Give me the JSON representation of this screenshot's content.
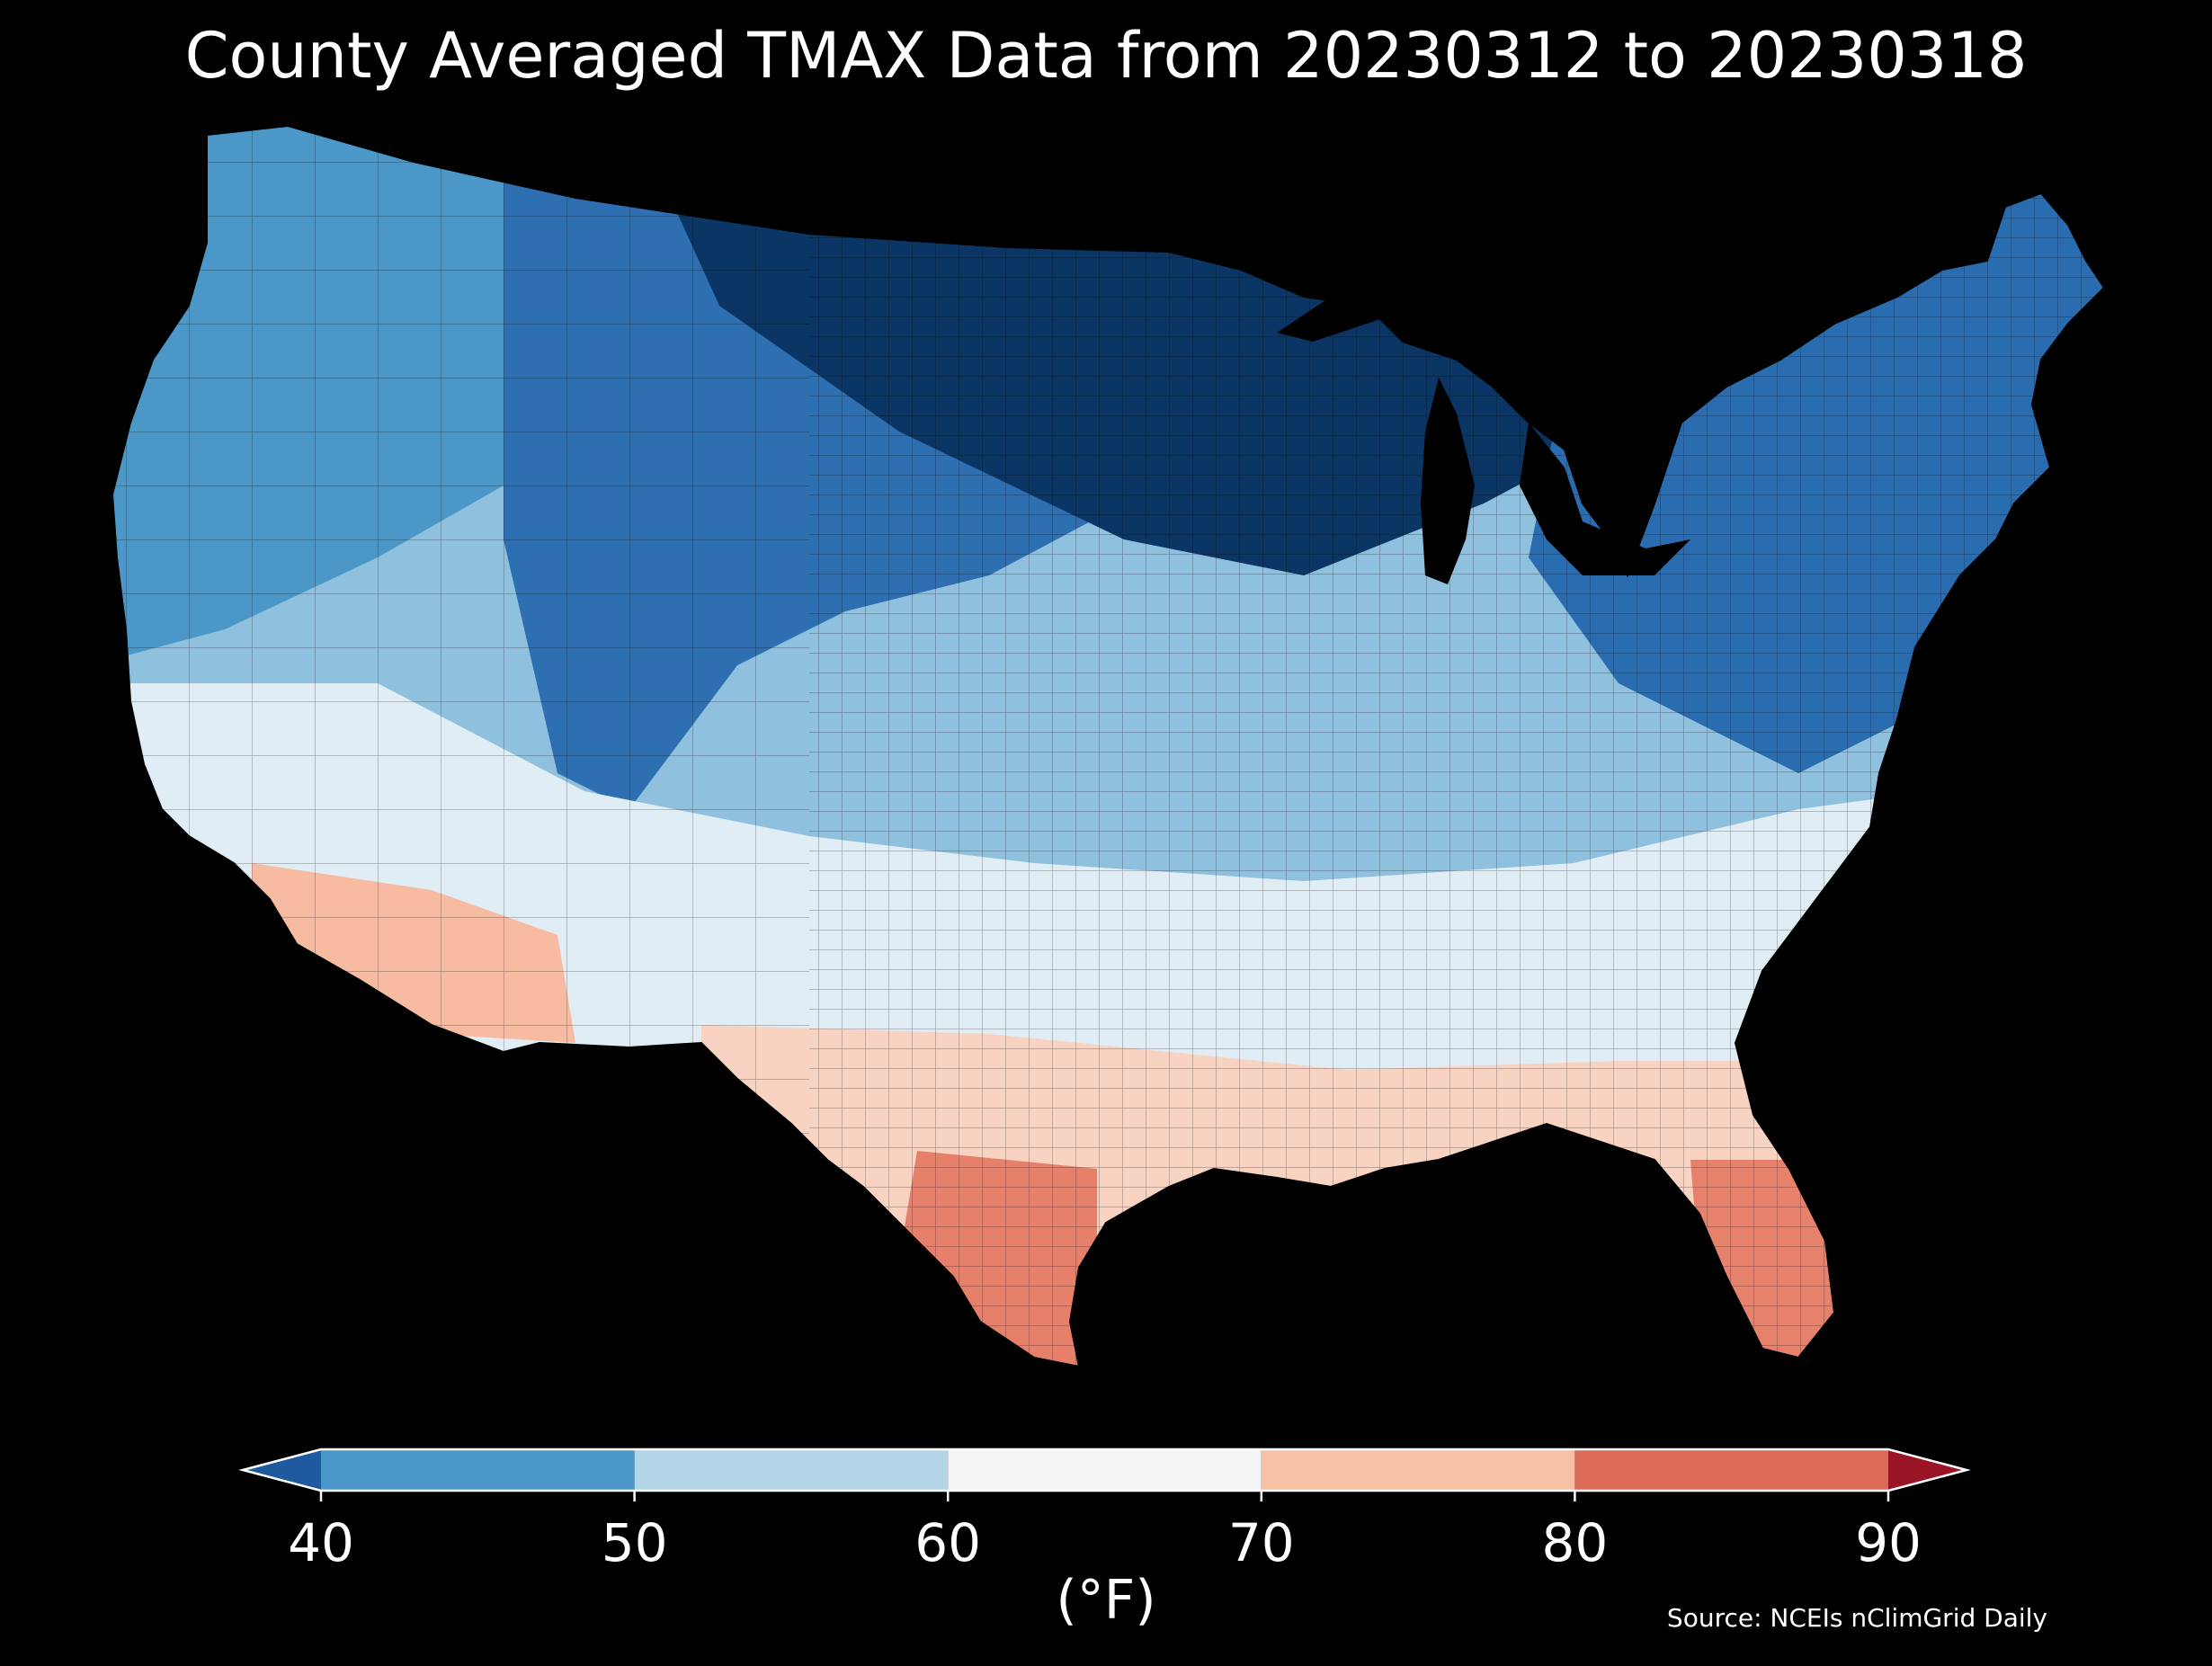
{
  "title": "County Averaged TMAX Data from 20230312 to 20230318",
  "colorbar": {
    "unit_label": "(°F)",
    "ticks": [
      "40",
      "50",
      "60",
      "70",
      "80",
      "90"
    ],
    "extend": "both",
    "bins": [
      {
        "range": [
          30,
          40
        ],
        "color": "#1f5a9e",
        "kind": "under"
      },
      {
        "range": [
          40,
          50
        ],
        "color": "#4b98c8"
      },
      {
        "range": [
          50,
          60
        ],
        "color": "#b4d5e8"
      },
      {
        "range": [
          60,
          70
        ],
        "color": "#f5f5f5"
      },
      {
        "range": [
          70,
          80
        ],
        "color": "#f8c1a7"
      },
      {
        "range": [
          80,
          90
        ],
        "color": "#db6a57"
      },
      {
        "range": [
          90,
          100
        ],
        "color": "#991526",
        "kind": "over"
      }
    ]
  },
  "source": "Source: NCEIs nClimGrid Daily",
  "map": {
    "region": "Contiguous United States, county level",
    "regions": [
      {
        "name": "upper-midwest",
        "color": "#0b3564"
      },
      {
        "name": "northern-plains-rockies",
        "color": "#2e6fb1"
      },
      {
        "name": "northwest",
        "color": "#4b98c8"
      },
      {
        "name": "northeast",
        "color": "#2a6cb0"
      },
      {
        "name": "central",
        "color": "#8fc0de"
      },
      {
        "name": "south-central",
        "color": "#e1edf5"
      },
      {
        "name": "gulf-coast",
        "color": "#f8d3c1"
      },
      {
        "name": "south-texas",
        "color": "#e7806b"
      },
      {
        "name": "florida",
        "color": "#e6816c"
      },
      {
        "name": "desert-southwest",
        "color": "#f6bba1"
      }
    ]
  }
}
